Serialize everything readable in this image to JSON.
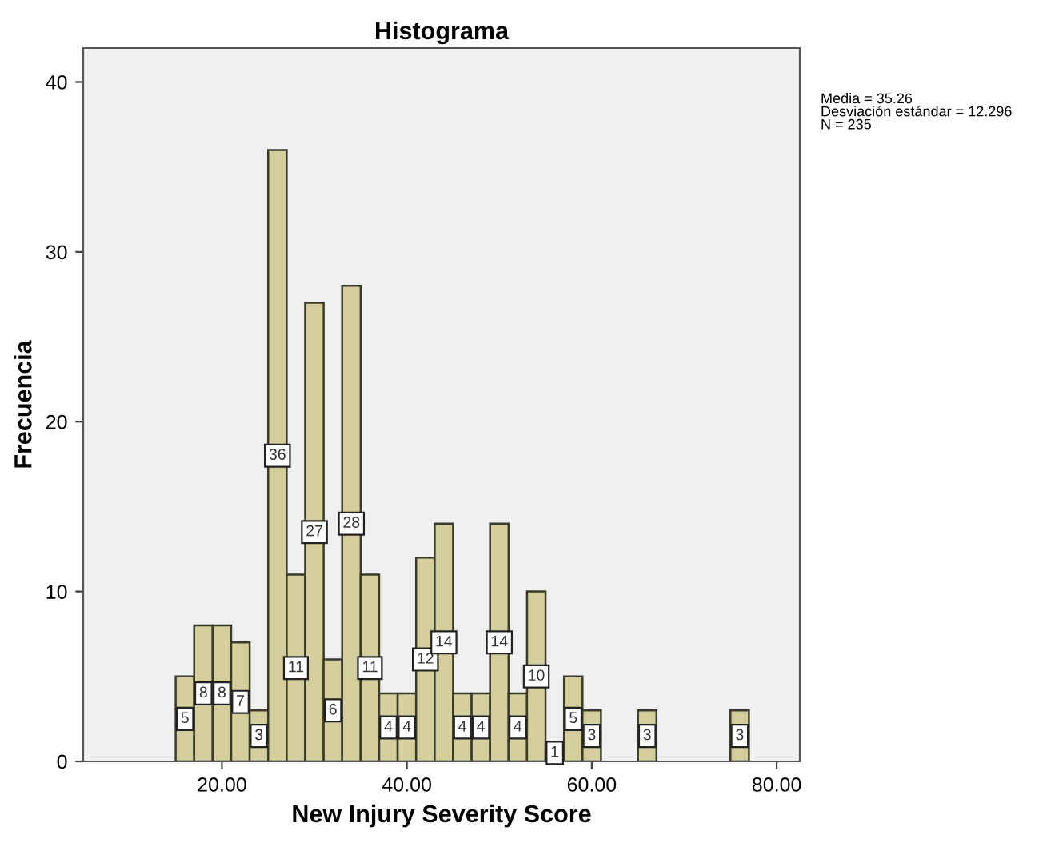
{
  "chart_data": {
    "type": "histogram",
    "title": "Histograma",
    "xlabel": "New Injury Severity Score",
    "ylabel": "Frecuencia",
    "bins": [
      15,
      17,
      19,
      21,
      23,
      25,
      27,
      29,
      31,
      33,
      35,
      37,
      39,
      41,
      43,
      45,
      47,
      49,
      51,
      53,
      55,
      57,
      59,
      61,
      63,
      65,
      67,
      69,
      71,
      73,
      75,
      77
    ],
    "values": [
      5,
      8,
      8,
      7,
      3,
      36,
      11,
      27,
      6,
      28,
      11,
      4,
      4,
      12,
      14,
      4,
      4,
      14,
      4,
      10,
      1,
      5,
      3,
      0,
      0,
      3,
      0,
      0,
      0,
      0,
      3
    ],
    "value_labels": [
      "5",
      "8",
      "8",
      "7",
      "3",
      "36",
      "11",
      "27",
      "6",
      "28",
      "11",
      "4",
      "4",
      "12",
      "14",
      "4",
      "4",
      "14",
      "4",
      "10",
      "1",
      "5",
      "3",
      null,
      null,
      "3",
      null,
      null,
      null,
      null,
      "3"
    ],
    "color": "#d3ce9b",
    "xlim": [
      5,
      82.5
    ],
    "ylim": [
      0,
      42
    ],
    "xticks": [
      {
        "value": 20,
        "label": "20.00"
      },
      {
        "value": 40,
        "label": "40.00"
      },
      {
        "value": 60,
        "label": "60.00"
      },
      {
        "value": 80,
        "label": "80.00"
      }
    ],
    "yticks": [
      0,
      10,
      20,
      30,
      40
    ],
    "grid": false,
    "annotations": [
      "Media = 35.26\nDesviación estándar = 12.296\nN = 235"
    ]
  }
}
